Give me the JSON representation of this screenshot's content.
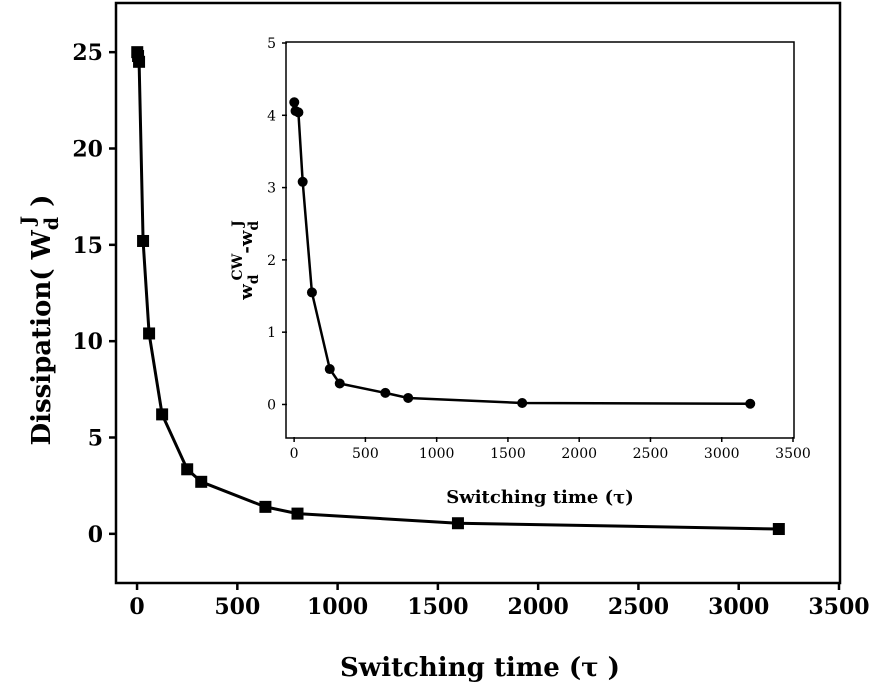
{
  "chart_data": [
    {
      "type": "line",
      "xlabel": "Switching time (τ )",
      "ylabel": {
        "base": "Dissipation( W",
        "sub": "d",
        "sup": "J",
        "close": " )"
      },
      "xlim": [
        -100,
        3500
      ],
      "ylim": [
        -2.5,
        27.5
      ],
      "xticks": [
        0,
        500,
        1000,
        1500,
        2000,
        2500,
        3000,
        3500
      ],
      "yticks": [
        0,
        5,
        10,
        15,
        20,
        25
      ],
      "marker": "square",
      "series": [
        {
          "x": [
            1,
            5,
            10,
            30,
            60,
            125,
            250,
            320,
            640,
            800,
            1600,
            3200
          ],
          "y": [
            25.0,
            24.8,
            24.5,
            15.2,
            10.4,
            6.2,
            3.35,
            2.7,
            1.4,
            1.05,
            0.55,
            0.25
          ]
        }
      ]
    },
    {
      "type": "line",
      "xlabel": "Switching time (τ)",
      "ylabel": {
        "w1": "w",
        "sub1": "d",
        "sup1": "CW",
        "mid": "-w",
        "sub2": "d",
        "sup2": "J"
      },
      "xlim": [
        -50,
        3500
      ],
      "ylim": [
        -0.45,
        5
      ],
      "xticks": [
        0,
        500,
        1000,
        1500,
        2000,
        2500,
        3000,
        3500
      ],
      "yticks": [
        0,
        1,
        2,
        3,
        4,
        5
      ],
      "marker": "circle",
      "series": [
        {
          "x": [
            1,
            10,
            30,
            60,
            125,
            250,
            320,
            640,
            800,
            1600,
            3200
          ],
          "y": [
            4.18,
            4.06,
            4.04,
            3.08,
            1.55,
            0.49,
            0.29,
            0.16,
            0.09,
            0.02,
            0.01
          ]
        }
      ]
    }
  ]
}
